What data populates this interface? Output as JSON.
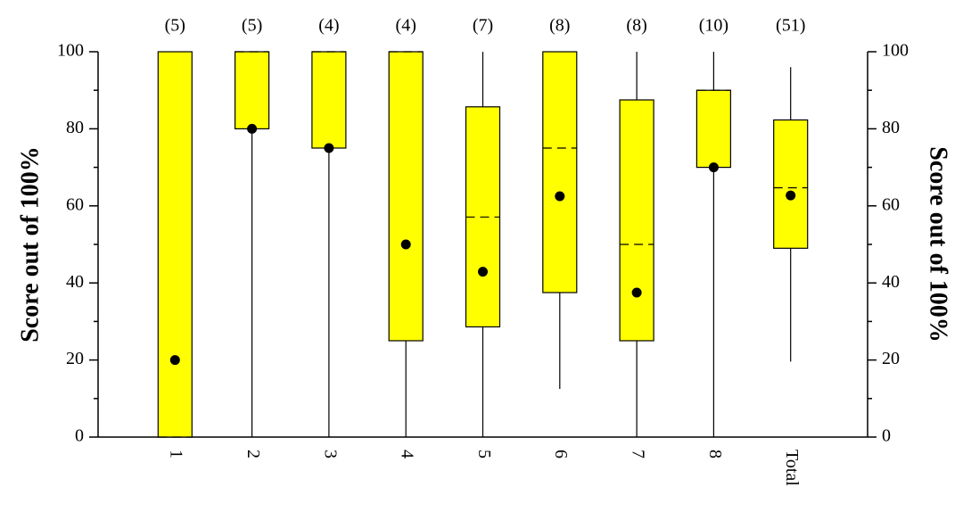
{
  "chart_data": {
    "type": "box",
    "y_label": "Score out of 100%",
    "y2_label": "Score out of 100%",
    "categories": [
      "1",
      "2",
      "3",
      "4",
      "5",
      "6",
      "7",
      "8",
      "Total"
    ],
    "count_labels": [
      "(5)",
      "(5)",
      "(4)",
      "(4)",
      "(7)",
      "(8)",
      "(8)",
      "(10)",
      "(51)"
    ],
    "min": [
      0,
      0,
      0,
      0,
      0,
      12.5,
      0,
      0,
      19.6
    ],
    "q1": [
      0,
      80,
      75,
      25,
      28.6,
      37.5,
      25,
      70,
      49
    ],
    "median": [
      0,
      100,
      100,
      100,
      57.1,
      75,
      50,
      90,
      64.7
    ],
    "q3": [
      100,
      100,
      100,
      100,
      85.7,
      100,
      87.5,
      90,
      82.3
    ],
    "max": [
      100,
      100,
      100,
      100,
      100,
      100,
      100,
      100,
      96
    ],
    "mean": [
      20,
      80,
      75,
      50,
      42.9,
      62.5,
      37.5,
      70,
      62.7
    ],
    "color": "#ffff00",
    "ylim": [
      0,
      100
    ],
    "yticks": [
      0,
      20,
      40,
      60,
      80,
      100
    ],
    "yticks_minor": [
      10,
      30,
      50,
      70,
      90
    ],
    "y2lim": [
      0,
      100
    ],
    "y2ticks": [
      0,
      20,
      40,
      60,
      80,
      100
    ]
  }
}
